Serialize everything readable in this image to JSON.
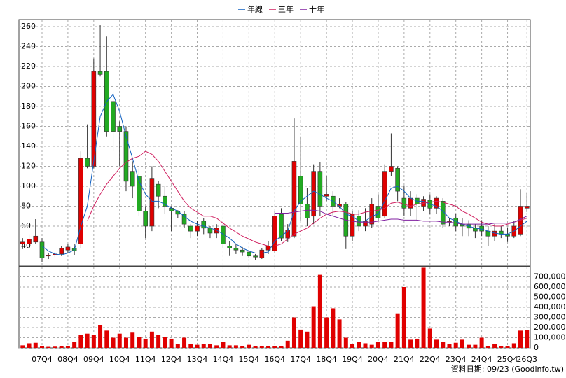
{
  "chart_data": [
    {
      "type": "candlestick",
      "open": [
        42,
        42,
        44,
        44,
        30,
        31,
        32,
        36,
        38,
        42,
        128,
        120,
        215,
        215,
        185,
        160,
        155,
        115,
        110,
        75,
        60,
        102,
        90,
        78,
        75,
        72,
        60,
        55,
        65,
        58,
        53,
        60,
        40,
        38,
        36,
        34,
        30,
        28,
        36,
        35,
        72,
        48,
        50,
        110,
        82,
        70,
        115,
        90,
        90,
        80,
        82,
        50,
        70,
        60,
        62,
        80,
        70,
        115,
        118,
        88,
        78,
        88,
        80,
        86,
        78,
        85,
        65,
        68,
        62,
        62,
        58,
        60,
        55,
        50,
        55,
        52,
        50,
        52,
        78
      ],
      "high": [
        48,
        52,
        67,
        48,
        33,
        34,
        40,
        42,
        42,
        135,
        162,
        228,
        262,
        250,
        195,
        165,
        160,
        125,
        118,
        80,
        120,
        105,
        100,
        80,
        76,
        75,
        62,
        65,
        68,
        60,
        62,
        65,
        45,
        42,
        39,
        36,
        32,
        38,
        45,
        75,
        78,
        62,
        168,
        150,
        98,
        122,
        124,
        110,
        95,
        88,
        84,
        75,
        76,
        78,
        88,
        92,
        122,
        153,
        120,
        100,
        95,
        92,
        90,
        92,
        90,
        88,
        68,
        72,
        68,
        66,
        62,
        66,
        60,
        62,
        60,
        58,
        65,
        97,
        93
      ],
      "low": [
        37,
        40,
        42,
        24,
        27,
        29,
        30,
        33,
        31,
        38,
        118,
        118,
        210,
        150,
        135,
        120,
        95,
        88,
        70,
        48,
        55,
        78,
        72,
        55,
        68,
        58,
        48,
        50,
        52,
        48,
        48,
        38,
        30,
        32,
        30,
        28,
        26,
        27,
        32,
        33,
        45,
        44,
        48,
        65,
        60,
        62,
        70,
        85,
        70,
        78,
        37,
        45,
        55,
        55,
        58,
        65,
        68,
        110,
        85,
        70,
        70,
        65,
        75,
        72,
        72,
        58,
        60,
        55,
        50,
        50,
        48,
        50,
        40,
        45,
        48,
        44,
        48,
        50,
        74
      ],
      "close": [
        44,
        47,
        50,
        28,
        31,
        32,
        38,
        39,
        35,
        128,
        120,
        215,
        212,
        155,
        155,
        155,
        105,
        100,
        75,
        60,
        108,
        90,
        80,
        75,
        72,
        62,
        55,
        60,
        58,
        53,
        58,
        42,
        38,
        36,
        34,
        30,
        29,
        36,
        40,
        70,
        48,
        56,
        125,
        82,
        68,
        115,
        80,
        92,
        80,
        82,
        50,
        72,
        60,
        65,
        82,
        68,
        115,
        120,
        95,
        78,
        88,
        82,
        87,
        78,
        88,
        62,
        65,
        60,
        60,
        58,
        55,
        55,
        50,
        55,
        52,
        50,
        60,
        80,
        80
      ],
      "up_color": "#e00000",
      "down_color": "#22aa22",
      "series": [
        {
          "name": "年線",
          "color": "#1060c0",
          "values": [
            null,
            null,
            null,
            40,
            35,
            32,
            31,
            33,
            36,
            60,
            80,
            125,
            170,
            185,
            192,
            175,
            150,
            128,
            105,
            92,
            85,
            85,
            82,
            78,
            75,
            70,
            65,
            62,
            60,
            58,
            56,
            52,
            48,
            42,
            38,
            35,
            33,
            33,
            34,
            45,
            50,
            55,
            75,
            85,
            90,
            95,
            92,
            88,
            85,
            80,
            72,
            70,
            65,
            65,
            70,
            72,
            85,
            98,
            100,
            95,
            88,
            85,
            85,
            82,
            80,
            75,
            68,
            65,
            62,
            60,
            58,
            57,
            55,
            53,
            52,
            52,
            55,
            60,
            65
          ]
        },
        {
          "name": "三年",
          "color": "#d02060",
          "values": [
            null,
            null,
            null,
            null,
            null,
            null,
            null,
            null,
            null,
            null,
            65,
            80,
            92,
            102,
            110,
            118,
            124,
            128,
            130,
            135,
            132,
            125,
            115,
            105,
            95,
            85,
            78,
            74,
            70,
            70,
            68,
            63,
            58,
            54,
            50,
            47,
            44,
            42,
            40,
            40,
            42,
            47,
            52,
            55,
            58,
            63,
            68,
            72,
            74,
            75,
            74,
            72,
            72,
            74,
            75,
            76,
            78,
            83,
            84,
            82,
            80,
            82,
            83,
            84,
            85,
            84,
            82,
            80,
            75,
            72,
            68,
            64,
            62,
            60,
            60,
            62,
            64,
            66,
            68
          ]
        },
        {
          "name": "十年",
          "color": "#8020a0",
          "values": [
            null,
            null,
            null,
            null,
            null,
            null,
            null,
            null,
            null,
            null,
            null,
            null,
            null,
            null,
            null,
            null,
            null,
            null,
            null,
            null,
            null,
            null,
            null,
            null,
            null,
            null,
            null,
            null,
            null,
            null,
            null,
            null,
            null,
            null,
            null,
            null,
            null,
            null,
            null,
            73,
            73,
            73,
            74,
            75,
            76,
            76,
            75,
            72,
            70,
            68,
            66,
            65,
            64,
            64,
            64,
            65,
            66,
            67,
            67,
            66,
            66,
            66,
            65,
            65,
            65,
            64,
            64,
            63,
            62,
            62,
            62,
            62,
            62,
            63,
            63,
            63,
            64,
            67,
            70
          ]
        }
      ],
      "ylim": [
        20,
        267
      ],
      "yticks": [
        40,
        60,
        80,
        100,
        120,
        140,
        160,
        180,
        200,
        220,
        240,
        260
      ],
      "grid": true,
      "legend": "top"
    },
    {
      "type": "bar",
      "categories": [
        null,
        null,
        null,
        "07Q4",
        null,
        null,
        null,
        "08Q4",
        null,
        null,
        null,
        "09Q4",
        null,
        null,
        null,
        "10Q4",
        null,
        null,
        null,
        "11Q4",
        null,
        null,
        null,
        "12Q4",
        null,
        null,
        null,
        "13Q4",
        null,
        null,
        null,
        "14Q4",
        null,
        null,
        null,
        "15Q4",
        null,
        null,
        null,
        "16Q4",
        null,
        null,
        null,
        "17Q4",
        null,
        null,
        null,
        "18Q4",
        null,
        null,
        null,
        "19Q4",
        null,
        null,
        null,
        "20Q4",
        null,
        null,
        null,
        "21Q4",
        null,
        null,
        null,
        "22Q4",
        null,
        null,
        null,
        "23Q4",
        null,
        null,
        null,
        "24Q4",
        null,
        null,
        null,
        "25Q4",
        null,
        null,
        "26Q3"
      ],
      "values": [
        25000,
        45000,
        50000,
        20000,
        10000,
        12000,
        15000,
        20000,
        60000,
        130000,
        140000,
        125000,
        225000,
        170000,
        100000,
        140000,
        100000,
        150000,
        110000,
        90000,
        160000,
        130000,
        110000,
        90000,
        40000,
        100000,
        40000,
        30000,
        40000,
        35000,
        25000,
        60000,
        25000,
        25000,
        20000,
        30000,
        20000,
        15000,
        15000,
        15000,
        20000,
        70000,
        300000,
        180000,
        160000,
        410000,
        720000,
        300000,
        390000,
        280000,
        100000,
        40000,
        60000,
        45000,
        30000,
        60000,
        60000,
        60000,
        340000,
        600000,
        80000,
        90000,
        790000,
        190000,
        80000,
        60000,
        40000,
        50000,
        80000,
        30000,
        30000,
        100000,
        20000,
        40000,
        15000,
        20000,
        45000,
        170000,
        175000
      ],
      "color": "#e00000",
      "ylim": [
        0,
        800000
      ],
      "yticks": [
        0,
        {
          "value": 100000,
          "label": "100,000"
        },
        {
          "value": 200000,
          "label": "200,000"
        },
        {
          "value": 300000,
          "label": "300,000"
        },
        {
          "value": 400000,
          "label": "400,000"
        },
        {
          "value": 500000,
          "label": "500,000"
        },
        {
          "value": 600000,
          "label": "600,000"
        },
        {
          "value": 700000,
          "label": "700,000"
        }
      ],
      "grid": true
    }
  ],
  "footer": "資料日期: 09/23 (Goodinfo.tw)"
}
